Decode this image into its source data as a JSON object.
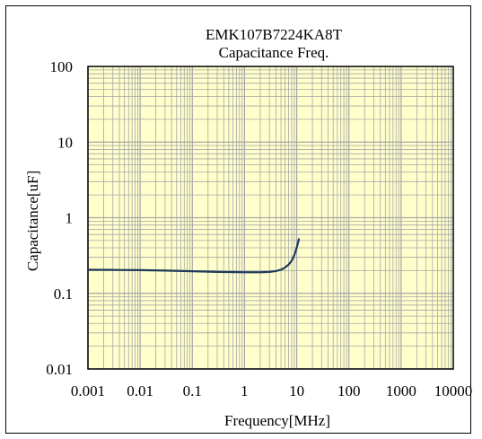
{
  "colors": {
    "plot_background": "#ffffcc",
    "grid_line": "#a6a6a6",
    "series_line": "#1f3a5a",
    "frame": "#000000"
  },
  "chart_data": {
    "type": "line",
    "title": "EMK107B7224KA8T",
    "subtitle": "Capacitance Freq.",
    "xlabel": "Frequency[MHz]",
    "ylabel": "Capacitance[uF]",
    "x_scale": "log",
    "y_scale": "log",
    "xlim": [
      0.001,
      10000
    ],
    "ylim": [
      0.01,
      100
    ],
    "x_ticks": [
      0.001,
      0.01,
      0.1,
      1,
      10,
      100,
      1000,
      10000
    ],
    "x_tick_labels": [
      "0.001",
      "0.01",
      "0.1",
      "1",
      "10",
      "100",
      "1000",
      "10000"
    ],
    "y_ticks": [
      0.01,
      0.1,
      1,
      10,
      100
    ],
    "y_tick_labels": [
      "0.01",
      "0.1",
      "1",
      "10",
      "100"
    ],
    "grid": true,
    "legend": "none",
    "series": [
      {
        "x": [
          0.001,
          0.003,
          0.01,
          0.03,
          0.1,
          0.3,
          1,
          2,
          3,
          4,
          5,
          6,
          7,
          8,
          9,
          10,
          11
        ],
        "y": [
          0.205,
          0.204,
          0.203,
          0.2,
          0.196,
          0.192,
          0.19,
          0.19,
          0.192,
          0.197,
          0.205,
          0.22,
          0.24,
          0.27,
          0.32,
          0.4,
          0.52
        ]
      }
    ]
  }
}
